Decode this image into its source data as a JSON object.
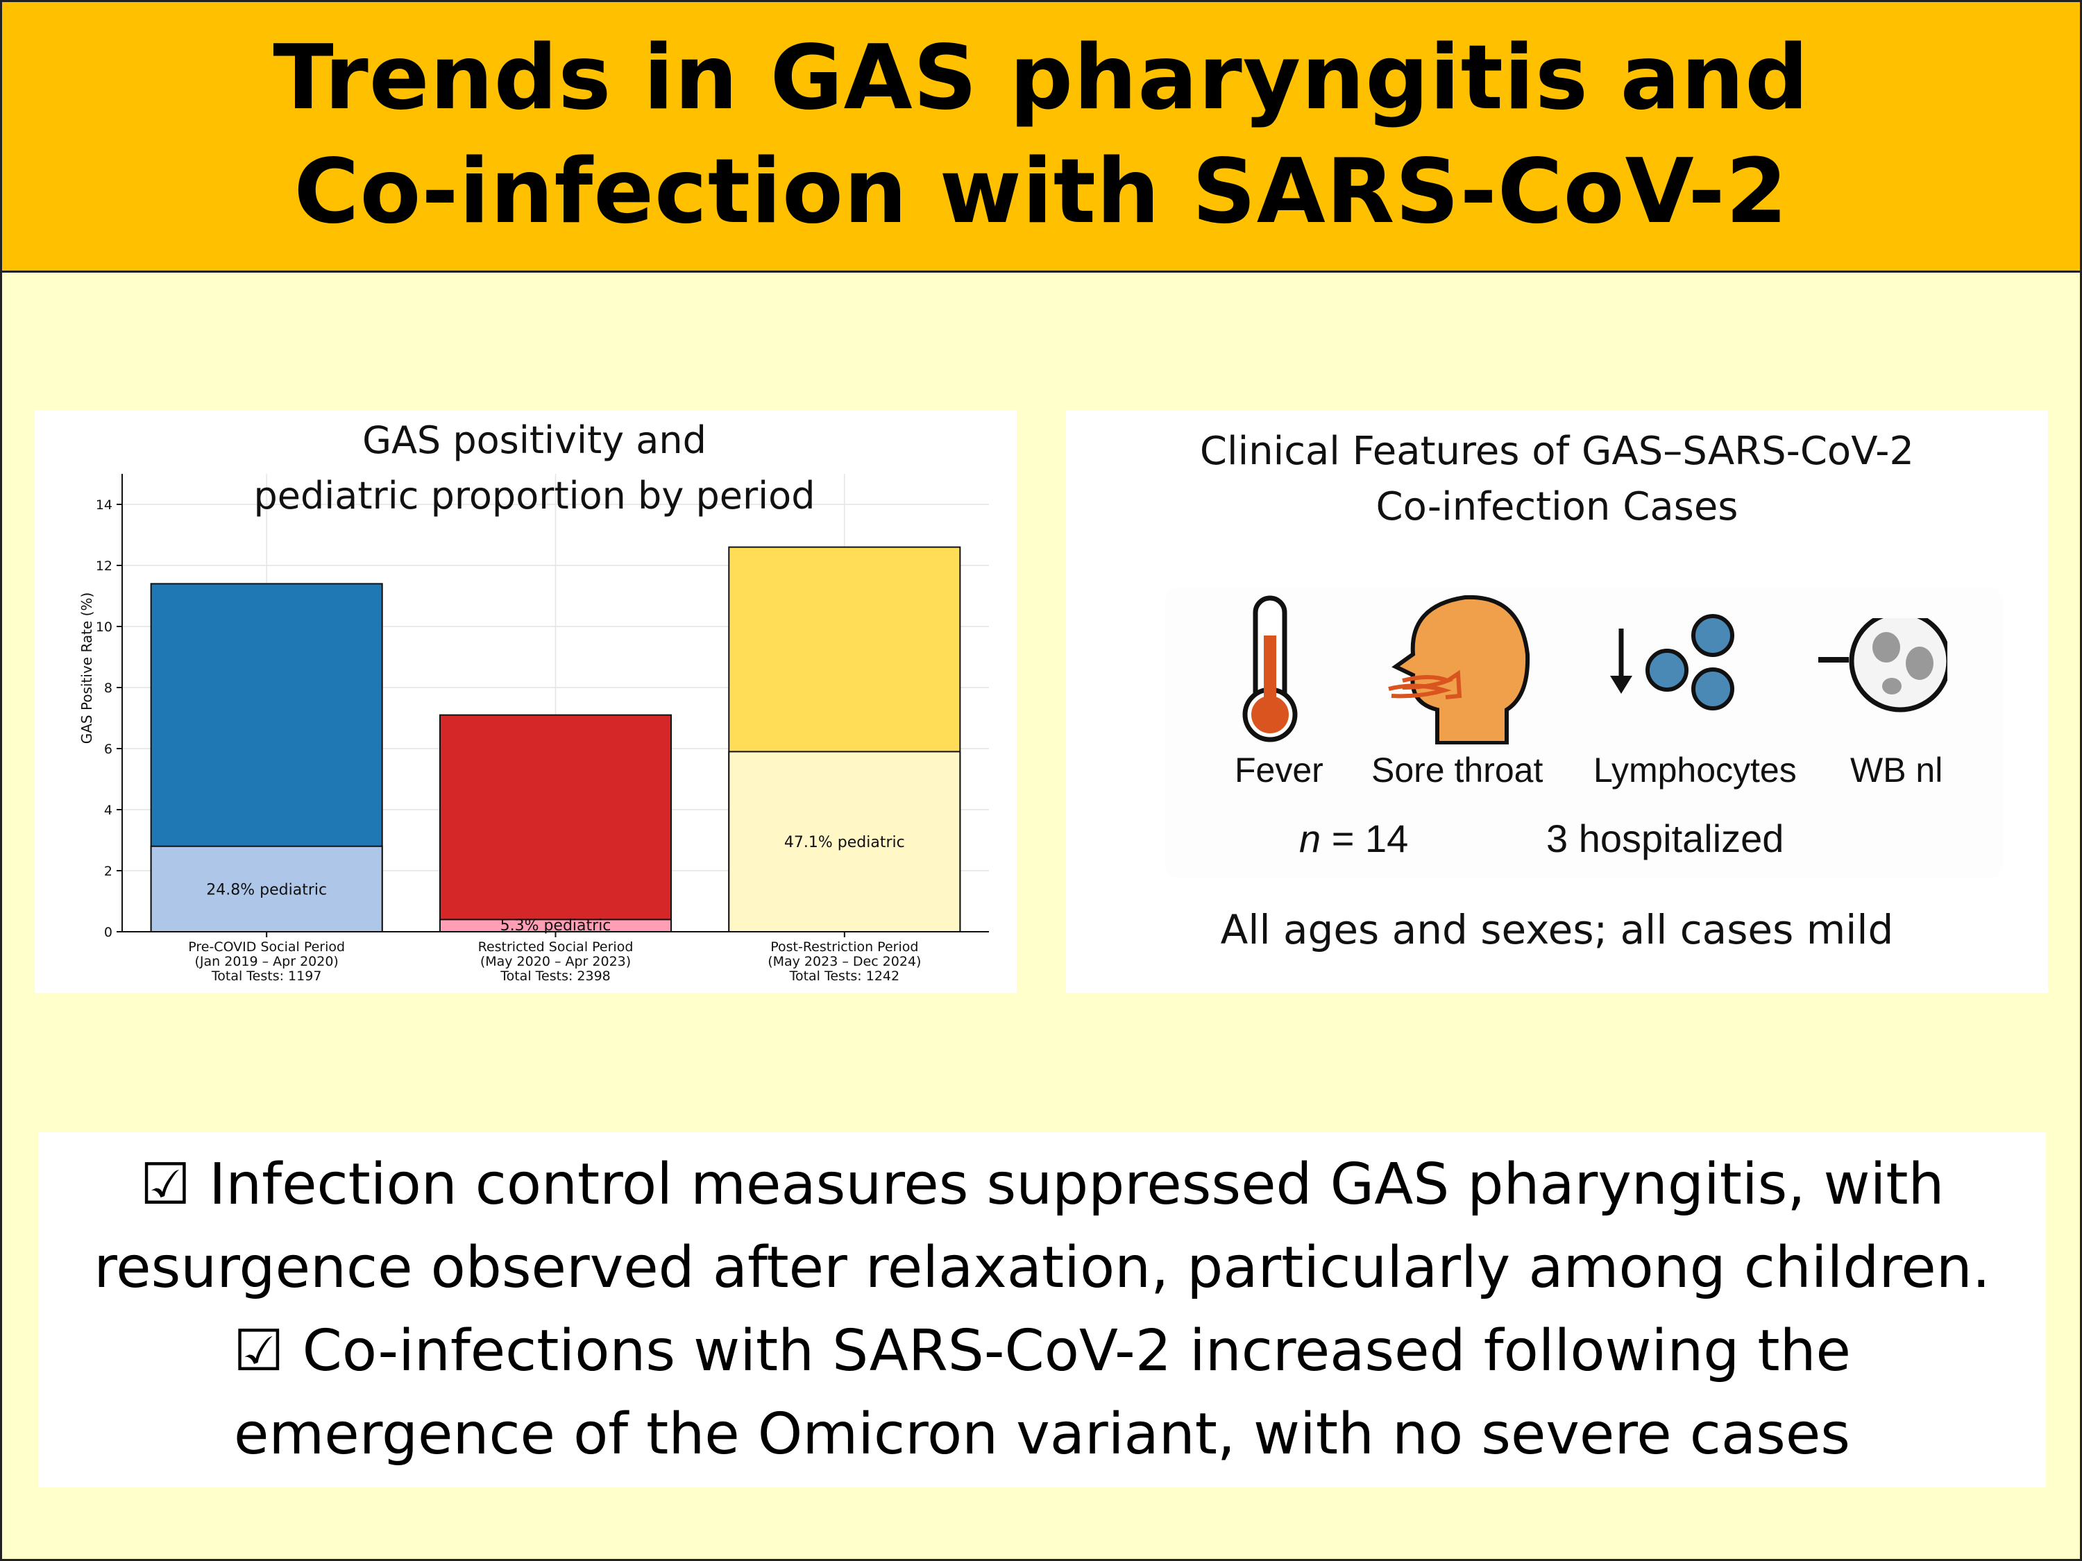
{
  "header": {
    "title_line1": "Trends in GAS pharyngitis and",
    "title_line2": "Co-infection with SARS-CoV-2"
  },
  "chart_data": {
    "type": "bar",
    "title_line1": "GAS positivity and",
    "title_line2": "pediatric proportion by period",
    "ylabel": "GAS Positive Rate (%)",
    "xlabel": "",
    "ylim": [
      0,
      15
    ],
    "yticks": [
      0,
      2,
      4,
      6,
      8,
      10,
      12,
      14
    ],
    "grid": true,
    "categories": [
      {
        "name": "Pre-COVID Social Period",
        "dates": "(Jan 2019 – Apr 2020)",
        "total": "Total Tests: 1197"
      },
      {
        "name": "Restricted Social Period",
        "dates": "(May 2020 – Apr 2023)",
        "total": "Total Tests: 2398"
      },
      {
        "name": "Post-Restriction Period",
        "dates": "(May 2023 – Dec 2024)",
        "total": "Total Tests: 1242"
      }
    ],
    "series": [
      {
        "values": [
          11.4,
          7.1,
          12.6
        ],
        "colors": [
          "#1f77b4",
          "#d62728",
          "#ffdd57"
        ]
      },
      {
        "values": [
          2.8,
          0.4,
          5.9
        ],
        "colors": [
          "#aec7e8",
          "#ff9eb5",
          "#fff7c6"
        ]
      }
    ],
    "pediatric_labels": [
      "24.8% pediatric",
      "5.3% pediatric",
      "47.1% pediatric"
    ]
  },
  "clinical": {
    "title_line1": "Clinical Features of GAS–SARS-CoV-2",
    "title_line2": "Co-infection Cases",
    "icons": [
      {
        "icon": "thermometer-icon",
        "label": "Fever"
      },
      {
        "icon": "throat-icon",
        "label": "Sore throat"
      },
      {
        "icon": "lymphocytes-icon",
        "label": "Lymphocytes"
      },
      {
        "icon": "wbc-icon",
        "label": "WB nl"
      }
    ],
    "n_prefix": "n",
    "n_value": "= 14",
    "hospitalized": "3 hospitalized",
    "footnote": "All ages and sexes; all cases mild"
  },
  "summary": {
    "line1": "☑ Infection control measures suppressed GAS pharyngitis, with",
    "line2": "resurgence observed after relaxation, particularly among children.",
    "line3": "☑ Co-infections with SARS-CoV-2 increased following the",
    "line4": "emergence of the Omicron variant, with no severe cases"
  }
}
